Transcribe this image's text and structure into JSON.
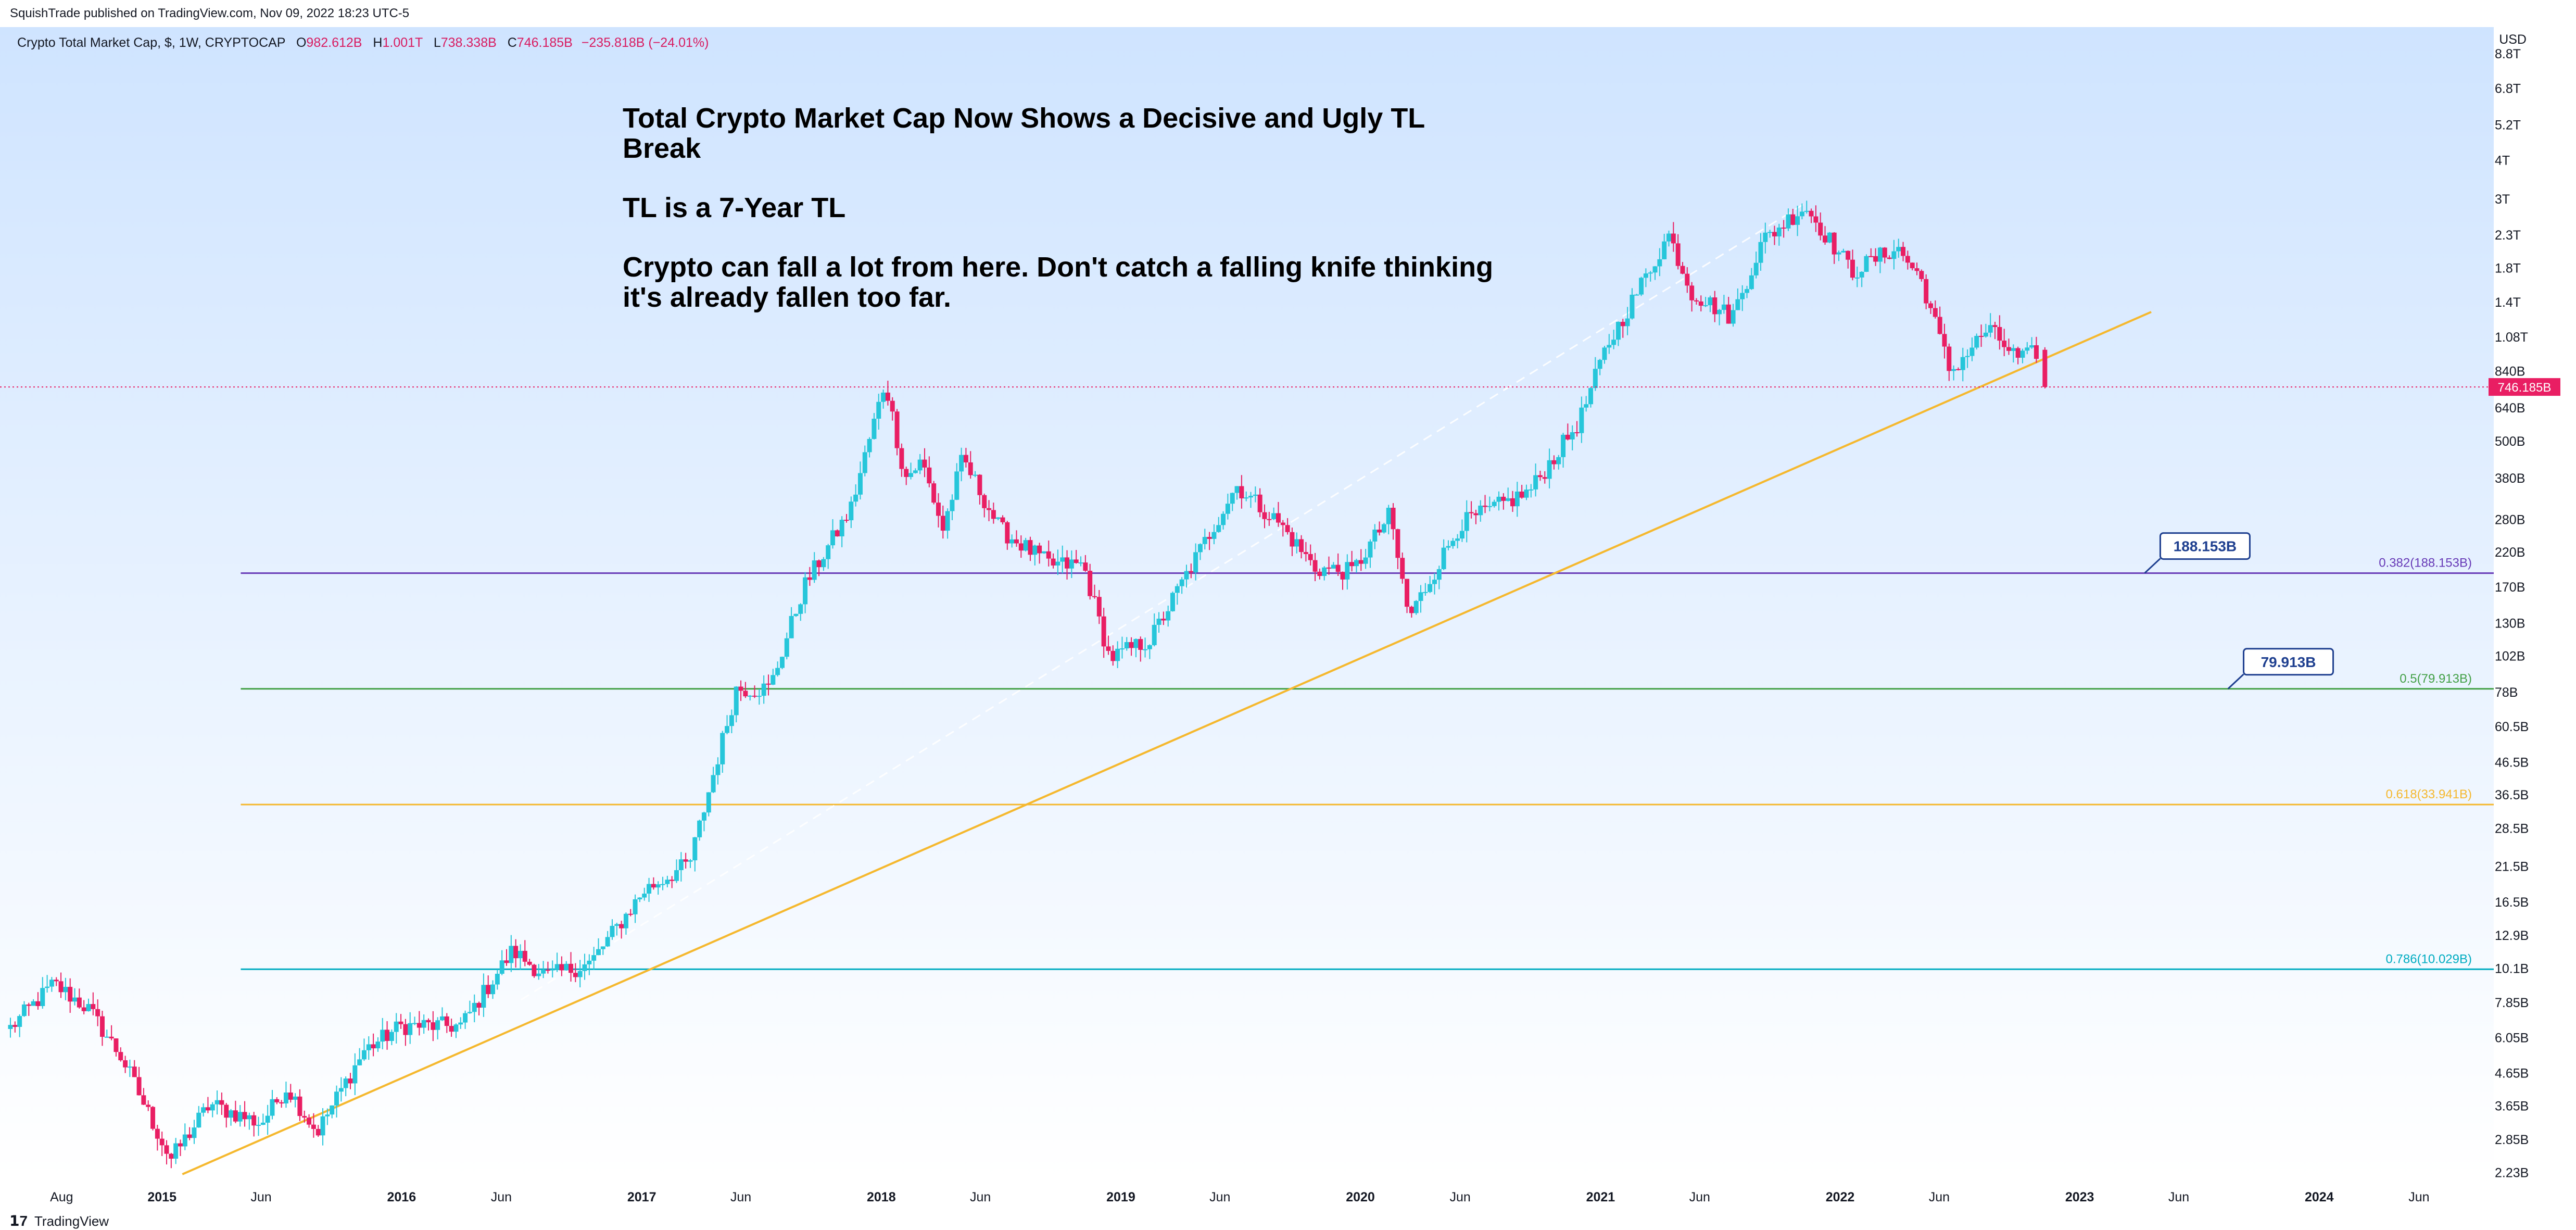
{
  "header": {
    "published": "SquishTrade published on TradingView.com, Nov 09, 2022 18:23 UTC-5"
  },
  "legend": {
    "symbol": "Crypto Total Market Cap, $, 1W, CRYPTOCAP",
    "open_label": "O",
    "open": "982.612B",
    "high_label": "H",
    "high": "1.001T",
    "low_label": "L",
    "low": "738.338B",
    "close_label": "C",
    "close": "746.185B",
    "change": "−235.818B (−24.01%)"
  },
  "headline": {
    "line1": "Total Crypto Market Cap Now Shows a Decisive and Ugly TL Break",
    "line2": "TL is a 7-Year TL",
    "line3": "Crypto can fall a lot from here. Don't catch a falling knife thinking it's already fallen too far."
  },
  "colors": {
    "up": "#26c6da",
    "down": "#e91e63",
    "trendline": "#f5b82e",
    "fib_0382": "#673ab7",
    "fib_05": "#43a047",
    "fib_0618": "#f5b82e",
    "fib_0786": "#00acc1",
    "price_tag": "#e91e63",
    "callout": "#1e3f8f"
  },
  "footer": {
    "brand": "TradingView"
  },
  "chart_data": {
    "type": "candlestick",
    "title": "Crypto Total Market Cap, $, 1W, CRYPTOCAP",
    "yscale": "log",
    "y_unit": "USD",
    "ylim": [
      "2.2B",
      "10T"
    ],
    "y_ticks": [
      "8.8T",
      "6.8T",
      "5.2T",
      "4T",
      "3T",
      "2.3T",
      "1.8T",
      "1.4T",
      "1.08T",
      "840B",
      "640B",
      "500B",
      "380B",
      "280B",
      "220B",
      "170B",
      "130B",
      "102B",
      "78B",
      "60.5B",
      "46.5B",
      "36.5B",
      "28.5B",
      "21.5B",
      "16.5B",
      "12.9B",
      "10.1B",
      "7.85B",
      "6.05B",
      "4.65B",
      "3.65B",
      "2.85B",
      "2.23B"
    ],
    "x_ticks": [
      "Aug",
      "2015",
      "Jun",
      "2016",
      "Jun",
      "2017",
      "Jun",
      "2018",
      "Jun",
      "2019",
      "Jun",
      "2020",
      "Jun",
      "2021",
      "Jun",
      "2022",
      "Jun",
      "2023",
      "Jun",
      "2024",
      "Jun"
    ],
    "x_range": [
      "2014-05-15",
      "2024-09-15"
    ],
    "last_price": "746.185B",
    "anchors": [
      {
        "date": "2014-05-15",
        "value": 6.5
      },
      {
        "date": "2014-07-20",
        "value": 9.0
      },
      {
        "date": "2014-09-10",
        "value": 7.5
      },
      {
        "date": "2014-11-01",
        "value": 5.2
      },
      {
        "date": "2015-01-14",
        "value": 2.45
      },
      {
        "date": "2015-03-15",
        "value": 3.7
      },
      {
        "date": "2015-06-01",
        "value": 3.2
      },
      {
        "date": "2015-07-10",
        "value": 4.2
      },
      {
        "date": "2015-08-25",
        "value": 3.0
      },
      {
        "date": "2015-11-05",
        "value": 5.5
      },
      {
        "date": "2016-01-01",
        "value": 6.6
      },
      {
        "date": "2016-04-01",
        "value": 6.6
      },
      {
        "date": "2016-06-18",
        "value": 11.5
      },
      {
        "date": "2016-08-10",
        "value": 9.5
      },
      {
        "date": "2016-10-15",
        "value": 10.5
      },
      {
        "date": "2017-01-05",
        "value": 18.0
      },
      {
        "date": "2017-03-15",
        "value": 22.0
      },
      {
        "date": "2017-05-25",
        "value": 80.0
      },
      {
        "date": "2017-07-15",
        "value": 80.0
      },
      {
        "date": "2017-09-05",
        "value": 170.0
      },
      {
        "date": "2017-11-15",
        "value": 300.0
      },
      {
        "date": "2018-01-07",
        "value": 780.0
      },
      {
        "date": "2018-02-06",
        "value": 380.0
      },
      {
        "date": "2018-03-04",
        "value": 430.0
      },
      {
        "date": "2018-04-05",
        "value": 260.0
      },
      {
        "date": "2018-05-05",
        "value": 440.0
      },
      {
        "date": "2018-07-01",
        "value": 260.0
      },
      {
        "date": "2018-09-15",
        "value": 200.0
      },
      {
        "date": "2018-11-05",
        "value": 200.0
      },
      {
        "date": "2018-12-15",
        "value": 100.0
      },
      {
        "date": "2019-02-15",
        "value": 115.0
      },
      {
        "date": "2019-06-26",
        "value": 360.0
      },
      {
        "date": "2019-09-01",
        "value": 270.0
      },
      {
        "date": "2019-10-24",
        "value": 195.0
      },
      {
        "date": "2019-12-20",
        "value": 190.0
      },
      {
        "date": "2020-02-15",
        "value": 290.0
      },
      {
        "date": "2020-03-15",
        "value": 135.0
      },
      {
        "date": "2020-06-01",
        "value": 270.0
      },
      {
        "date": "2020-09-15",
        "value": 345.0
      },
      {
        "date": "2020-11-30",
        "value": 580.0
      },
      {
        "date": "2021-01-10",
        "value": 1000.0
      },
      {
        "date": "2021-04-15",
        "value": 2300.0
      },
      {
        "date": "2021-05-20",
        "value": 1500.0
      },
      {
        "date": "2021-07-20",
        "value": 1250.0
      },
      {
        "date": "2021-09-05",
        "value": 2200.0
      },
      {
        "date": "2021-11-08",
        "value": 2850.0
      },
      {
        "date": "2022-01-20",
        "value": 1750.0
      },
      {
        "date": "2022-03-28",
        "value": 2100.0
      },
      {
        "date": "2022-05-05",
        "value": 1650.0
      },
      {
        "date": "2022-06-18",
        "value": 830.0
      },
      {
        "date": "2022-08-14",
        "value": 1150.0
      },
      {
        "date": "2022-10-01",
        "value": 910.0
      },
      {
        "date": "2022-11-01",
        "value": 980.0
      }
    ],
    "last_candle": {
      "date": "2022-11-09",
      "open": 982.612,
      "high": 1001,
      "low": 738.338,
      "close": 746.185
    },
    "trendline": {
      "start": {
        "date": "2015-02-01",
        "value": 2.2
      },
      "end": {
        "date": "2023-04-20",
        "value": 1300
      }
    },
    "fib_levels": [
      {
        "label": "0.382(188.153B)",
        "value": 188.153,
        "callout": "188.153B",
        "color": "#673ab7"
      },
      {
        "label": "0.5(79.913B)",
        "value": 79.913,
        "callout": "79.913B",
        "color": "#43a047"
      },
      {
        "label": "0.618(33.941B)",
        "value": 33.941,
        "color": "#f5b82e"
      },
      {
        "label": "0.786(10.029B)",
        "value": 10.029,
        "color": "#00acc1"
      }
    ],
    "fib_start_date": "2015-05-01",
    "dashed_line": {
      "start": {
        "date": "2016-07-01",
        "value": 8.0
      },
      "end": {
        "date": "2021-11-08",
        "value": 2900
      }
    },
    "grid": false,
    "legend": "top-left"
  }
}
